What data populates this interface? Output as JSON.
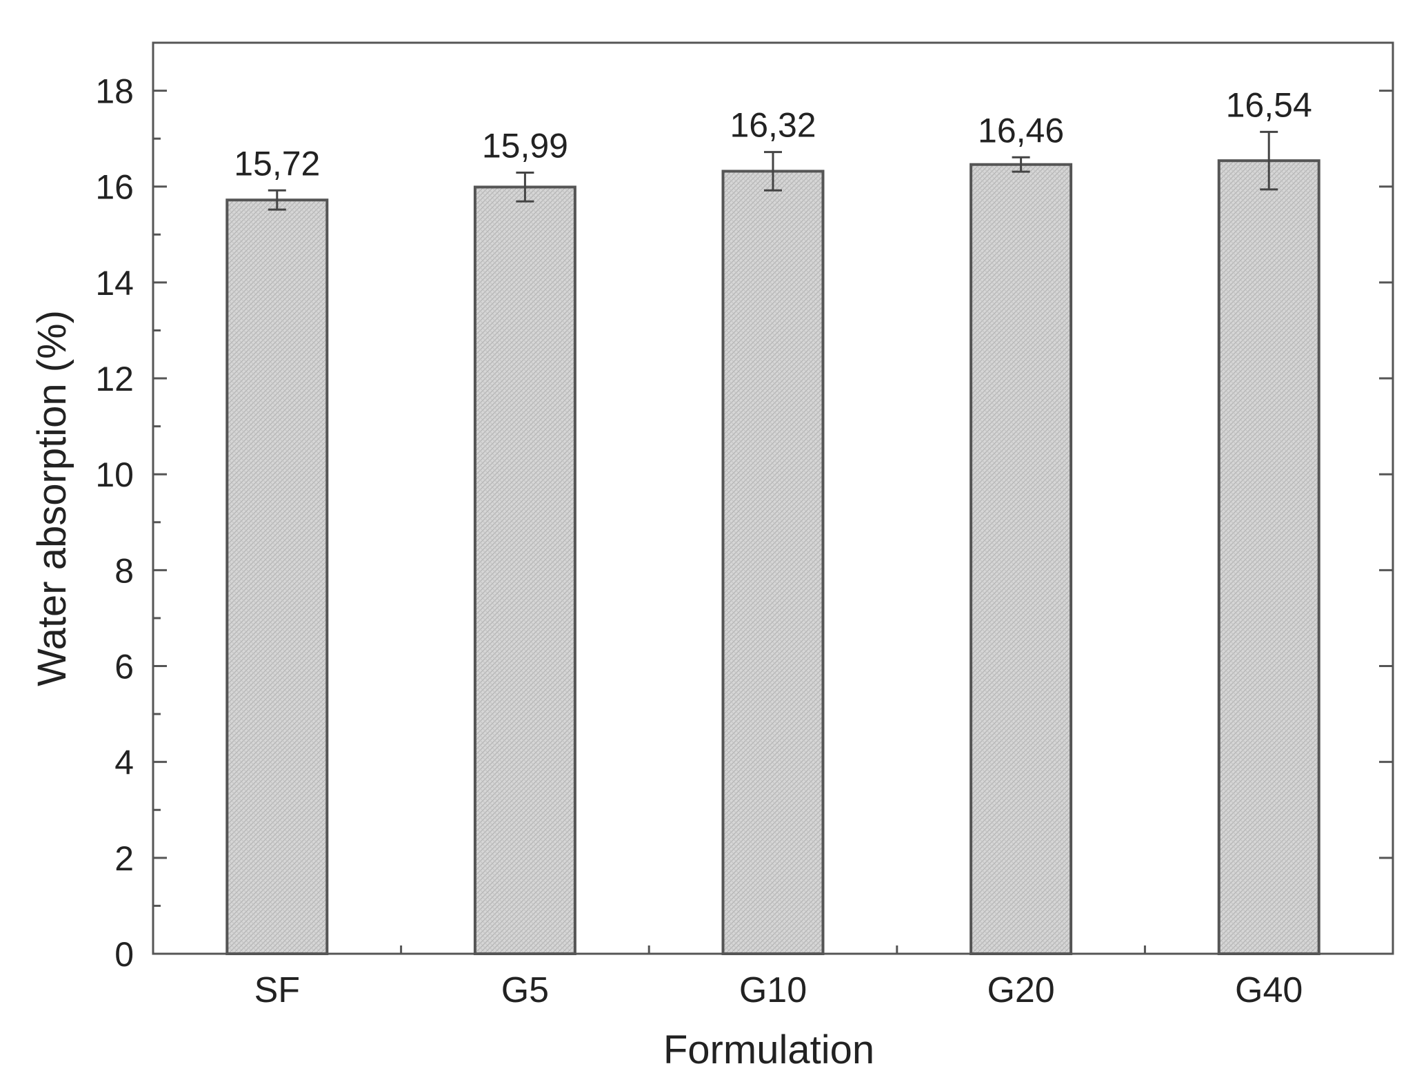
{
  "chart_data": {
    "type": "bar",
    "title": "",
    "xlabel": "Formulation",
    "ylabel": "Water absorption (%)",
    "categories": [
      "SF",
      "G5",
      "G10",
      "G20",
      "G40"
    ],
    "values": [
      15.72,
      15.99,
      16.32,
      16.46,
      16.54
    ],
    "value_labels": [
      "15,72",
      "15,99",
      "16,32",
      "16,46",
      "16,54"
    ],
    "error": [
      0.2,
      0.3,
      0.4,
      0.15,
      0.6
    ],
    "ylim": [
      0,
      19
    ],
    "yticks": [
      0,
      2,
      4,
      6,
      8,
      10,
      12,
      14,
      16,
      18
    ],
    "grid": false,
    "bar_fill": "#d4d4d4",
    "bar_edge": "#555555"
  }
}
